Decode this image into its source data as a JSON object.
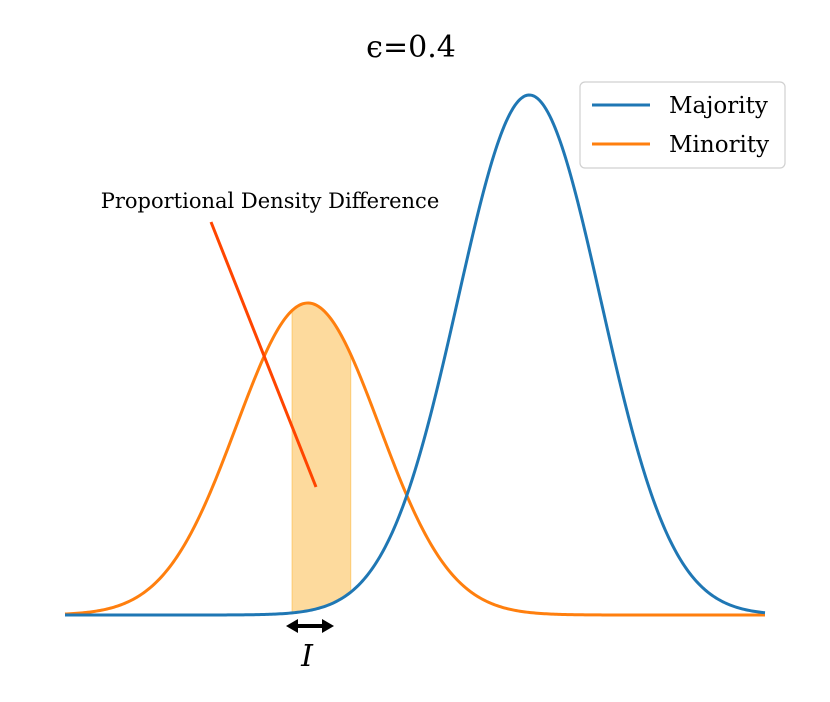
{
  "chart_data": {
    "type": "line",
    "title": "ϵ=0.4",
    "xlabel": "",
    "ylabel": "",
    "axes_visible": false,
    "grid": false,
    "legend_position": "top-right",
    "x_range": [
      -4.5,
      5.3
    ],
    "y_range": [
      0,
      1.0
    ],
    "series": [
      {
        "name": "Majority",
        "color": "#1f77b4",
        "distribution": "gaussian",
        "mean": 2.0,
        "std": 1.0,
        "amplitude": 1.0
      },
      {
        "name": "Minority",
        "color": "#ff7f0e",
        "distribution": "gaussian",
        "mean": -1.1,
        "std": 1.0,
        "amplitude": 0.6
      }
    ],
    "shaded_interval": {
      "x_start": -1.32,
      "x_end": -0.5,
      "color": "#fdd998",
      "label": "I"
    },
    "annotations": [
      {
        "text": "Proportional Density Difference",
        "arrow_color": "#ff4500"
      }
    ]
  }
}
